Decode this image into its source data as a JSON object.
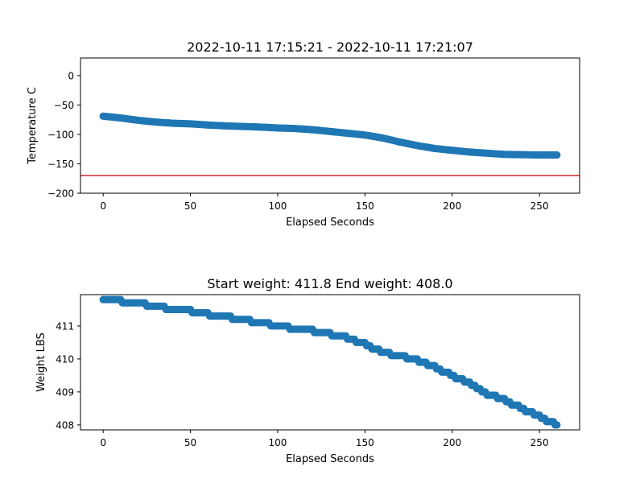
{
  "chart_data": [
    {
      "type": "scatter",
      "title": "2022-10-11 17:15:21 - 2022-10-11 17:21:07",
      "xlabel": "Elapsed Seconds",
      "ylabel": "Temperature C",
      "xlim": [
        -13,
        273
      ],
      "ylim": [
        -200,
        30
      ],
      "xticks": [
        0,
        50,
        100,
        150,
        200,
        250
      ],
      "yticks": [
        -200,
        -150,
        -100,
        -50,
        0
      ],
      "grid": false,
      "marker_color": "#1f77b4",
      "x_start": 0,
      "x_end": 260,
      "x_step": 1,
      "curve": [
        [
          0,
          -69
        ],
        [
          10,
          -72
        ],
        [
          20,
          -76
        ],
        [
          30,
          -79
        ],
        [
          40,
          -81
        ],
        [
          50,
          -82
        ],
        [
          60,
          -84
        ],
        [
          70,
          -85.5
        ],
        [
          80,
          -86.5
        ],
        [
          90,
          -87.5
        ],
        [
          100,
          -89
        ],
        [
          110,
          -90
        ],
        [
          120,
          -92
        ],
        [
          130,
          -95
        ],
        [
          140,
          -98
        ],
        [
          150,
          -101
        ],
        [
          160,
          -106
        ],
        [
          170,
          -113
        ],
        [
          180,
          -119
        ],
        [
          190,
          -124
        ],
        [
          200,
          -127
        ],
        [
          210,
          -130
        ],
        [
          220,
          -132
        ],
        [
          230,
          -134
        ],
        [
          240,
          -134.5
        ],
        [
          250,
          -135
        ],
        [
          260,
          -135
        ]
      ],
      "reference_line": {
        "y": -170,
        "color": "#d62728"
      }
    },
    {
      "type": "scatter",
      "title": "Start weight: 411.8 End weight: 408.0",
      "xlabel": "Elapsed Seconds",
      "ylabel": "Weight LBS",
      "xlim": [
        -13,
        273
      ],
      "ylim": [
        407.85,
        411.95
      ],
      "xticks": [
        0,
        50,
        100,
        150,
        200,
        250
      ],
      "yticks": [
        408,
        409,
        410,
        411
      ],
      "grid": false,
      "marker_color": "#1f77b4",
      "x_start": 0,
      "x_end": 260,
      "x_step": 1,
      "curve": [
        [
          0,
          411.8
        ],
        [
          20,
          411.7
        ],
        [
          40,
          411.5
        ],
        [
          50,
          411.45
        ],
        [
          60,
          411.35
        ],
        [
          80,
          411.2
        ],
        [
          100,
          411.0
        ],
        [
          120,
          410.85
        ],
        [
          140,
          410.65
        ],
        [
          150,
          410.45
        ],
        [
          160,
          410.2
        ],
        [
          170,
          410.1
        ],
        [
          180,
          409.95
        ],
        [
          190,
          409.75
        ],
        [
          200,
          409.5
        ],
        [
          210,
          409.25
        ],
        [
          220,
          408.95
        ],
        [
          230,
          408.75
        ],
        [
          240,
          408.5
        ],
        [
          250,
          408.25
        ],
        [
          260,
          408.0
        ]
      ],
      "quantization": 0.1
    }
  ]
}
